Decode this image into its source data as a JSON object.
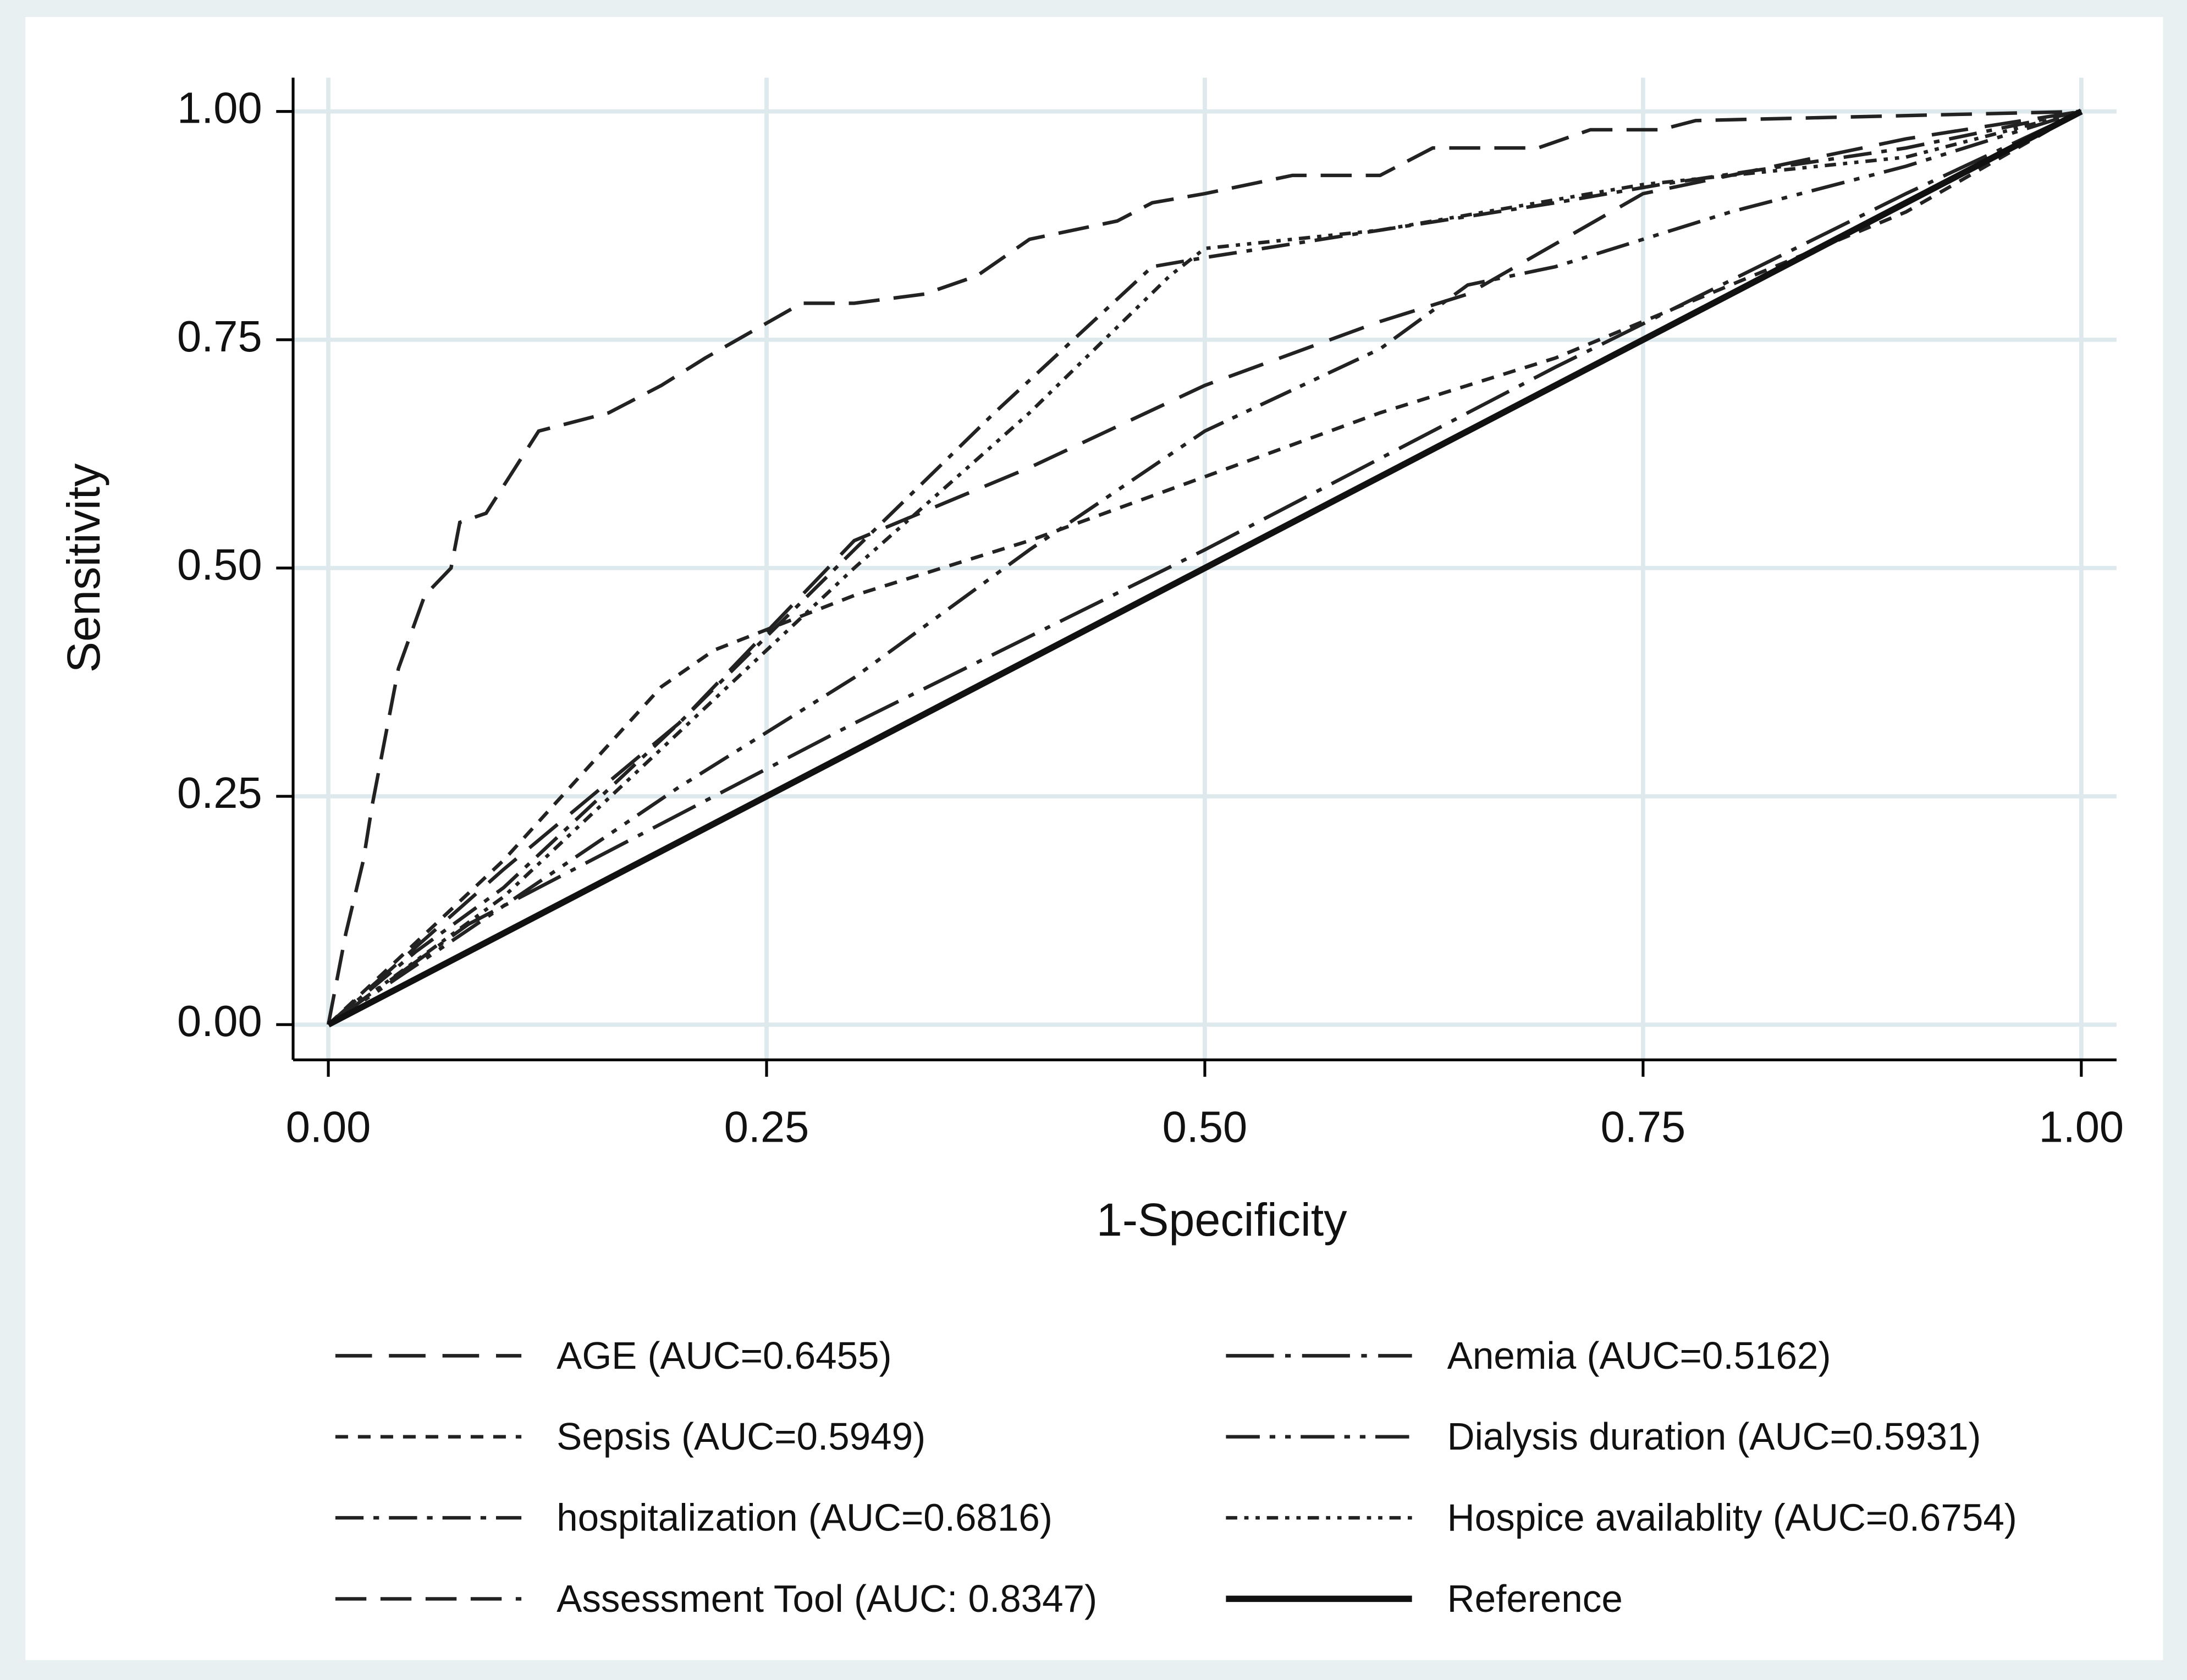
{
  "chart_data": {
    "type": "line",
    "xlabel": "1-Specificity",
    "ylabel": "Sensitivity",
    "xlim": [
      0,
      1
    ],
    "ylim": [
      0,
      1
    ],
    "xticks": [
      {
        "value": 0,
        "label": "0.00"
      },
      {
        "value": 0.25,
        "label": "0.25"
      },
      {
        "value": 0.5,
        "label": "0.50"
      },
      {
        "value": 0.75,
        "label": "0.75"
      },
      {
        "value": 1,
        "label": "1.00"
      }
    ],
    "yticks": [
      {
        "value": 0,
        "label": "0.00"
      },
      {
        "value": 0.25,
        "label": "0.25"
      },
      {
        "value": 0.5,
        "label": "0.50"
      },
      {
        "value": 0.75,
        "label": "0.75"
      },
      {
        "value": 1,
        "label": "1.00"
      }
    ],
    "grid": true,
    "series": [
      {
        "name": "AGE (AUC=0.6455)",
        "color": "#222222",
        "dash": "26 12",
        "line_width": 2.5,
        "x": [
          0,
          0.1,
          0.2,
          0.3,
          0.4,
          0.5,
          0.6,
          0.65,
          0.75,
          0.9,
          1
        ],
        "values": [
          0,
          0.17,
          0.33,
          0.53,
          0.61,
          0.7,
          0.77,
          0.8,
          0.91,
          0.97,
          1
        ]
      },
      {
        "name": "Anemia (AUC=0.5162)",
        "color": "#222222",
        "dash": "34 8 4 8",
        "line_width": 2.5,
        "x": [
          0,
          0.08,
          0.3,
          0.5,
          0.7,
          0.9,
          1
        ],
        "values": [
          0,
          0.11,
          0.33,
          0.52,
          0.72,
          0.91,
          1
        ]
      },
      {
        "name": "Sepsis (AUC=0.5949)",
        "color": "#222222",
        "dash": "9 7",
        "line_width": 2.5,
        "x": [
          0,
          0.1,
          0.19,
          0.22,
          0.3,
          0.4,
          0.5,
          0.6,
          0.7,
          0.8,
          0.9,
          1
        ],
        "values": [
          0,
          0.18,
          0.37,
          0.41,
          0.47,
          0.53,
          0.6,
          0.67,
          0.73,
          0.81,
          0.89,
          1
        ]
      },
      {
        "name": "Dialysis duration (AUC=0.5931)",
        "color": "#222222",
        "dash": "24 7 4 7 4 7",
        "line_width": 2.5,
        "x": [
          0,
          0.1,
          0.2,
          0.3,
          0.4,
          0.5,
          0.6,
          0.65,
          0.7,
          0.8,
          0.9,
          1
        ],
        "values": [
          0,
          0.13,
          0.26,
          0.38,
          0.52,
          0.65,
          0.74,
          0.81,
          0.83,
          0.89,
          0.94,
          1
        ]
      },
      {
        "name": "hospitalization (AUC=0.6816)",
        "color": "#222222",
        "dash": "20 7 4 7",
        "line_width": 2.5,
        "x": [
          0,
          0.05,
          0.1,
          0.2,
          0.3,
          0.38,
          0.47,
          0.5,
          0.6,
          0.7,
          0.76,
          0.9,
          1
        ],
        "values": [
          0,
          0.08,
          0.15,
          0.33,
          0.52,
          0.67,
          0.83,
          0.84,
          0.87,
          0.9,
          0.92,
          0.96,
          1
        ]
      },
      {
        "name": "Hospice availablity (AUC=0.6754)",
        "color": "#222222",
        "dash": "8 5 3 5 3 5",
        "line_width": 2.5,
        "x": [
          0,
          0.1,
          0.2,
          0.3,
          0.4,
          0.48,
          0.5,
          0.6,
          0.75,
          0.9,
          1
        ],
        "values": [
          0,
          0.14,
          0.32,
          0.5,
          0.67,
          0.82,
          0.85,
          0.87,
          0.92,
          0.95,
          1
        ]
      },
      {
        "name": "Assessment Tool (AUC: 0.8347)",
        "color": "#222222",
        "dash": "22 10",
        "line_width": 2.5,
        "x": [
          0,
          0.01,
          0.02,
          0.025,
          0.04,
          0.055,
          0.07,
          0.075,
          0.09,
          0.12,
          0.16,
          0.19,
          0.215,
          0.27,
          0.3,
          0.34,
          0.37,
          0.4,
          0.45,
          0.47,
          0.5,
          0.55,
          0.6,
          0.63,
          0.69,
          0.72,
          0.76,
          0.78,
          1
        ],
        "values": [
          0,
          0.1,
          0.18,
          0.24,
          0.39,
          0.47,
          0.5,
          0.55,
          0.56,
          0.65,
          0.67,
          0.7,
          0.73,
          0.79,
          0.79,
          0.8,
          0.82,
          0.86,
          0.88,
          0.9,
          0.91,
          0.93,
          0.93,
          0.96,
          0.96,
          0.98,
          0.98,
          0.99,
          1
        ]
      },
      {
        "name": "Reference",
        "color": "#111111",
        "dash": "none",
        "line_width": 4.5,
        "x": [
          0,
          1
        ],
        "values": [
          0,
          1
        ]
      }
    ]
  }
}
